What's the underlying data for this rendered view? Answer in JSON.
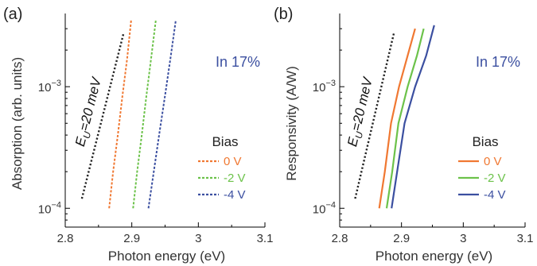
{
  "chart_data": [
    {
      "panel_label": "(a)",
      "type": "line",
      "xlabel": "Photon energy (eV)",
      "ylabel": "Absorption (arb. units)",
      "xlim": [
        2.8,
        3.1
      ],
      "ylim": [
        7e-05,
        0.004
      ],
      "y_scale": "log",
      "x_ticks": [
        2.8,
        2.9,
        3.0,
        3.1
      ],
      "x_tick_labels": [
        "2.8",
        "2.9",
        "3",
        "3.1"
      ],
      "y_ticks": [
        0.0001,
        0.001
      ],
      "annotation": "In 17%",
      "annotation_color": "#3b4fa0",
      "legend_title": "Bias",
      "legend_position": "right",
      "line_style": "dashed",
      "reference_line": {
        "label": "E_U=20 meV",
        "label_main": "E",
        "label_sub": "U",
        "label_rest": "=20 meV",
        "color": "#222222",
        "x": [
          2.825,
          2.888
        ],
        "y": [
          0.00012,
          0.0028
        ]
      },
      "series": [
        {
          "name": "0 V",
          "color": "#f07832",
          "x": [
            2.866,
            2.872,
            2.879,
            2.886,
            2.893,
            2.899
          ],
          "y": [
            0.0001,
            0.0002,
            0.0004,
            0.00085,
            0.0017,
            0.0035
          ]
        },
        {
          "name": "-2 V",
          "color": "#6cc24a",
          "x": [
            2.902,
            2.908,
            2.915,
            2.922,
            2.929,
            2.936
          ],
          "y": [
            0.0001,
            0.0002,
            0.0004,
            0.00085,
            0.0017,
            0.0035
          ]
        },
        {
          "name": "-4 V",
          "color": "#3b4fa0",
          "x": [
            2.925,
            2.933,
            2.941,
            2.95,
            2.958,
            2.966
          ],
          "y": [
            0.0001,
            0.0002,
            0.0004,
            0.00085,
            0.0017,
            0.0035
          ]
        }
      ]
    },
    {
      "panel_label": "(b)",
      "type": "line",
      "xlabel": "Photon energy (eV)",
      "ylabel": "Responsivity (A/W)",
      "xlim": [
        2.8,
        3.1
      ],
      "ylim": [
        7e-05,
        0.004
      ],
      "y_scale": "log",
      "x_ticks": [
        2.8,
        2.9,
        3.0,
        3.1
      ],
      "x_tick_labels": [
        "2.8",
        "2.9",
        "3",
        "3.1"
      ],
      "y_ticks": [
        0.0001,
        0.001
      ],
      "annotation": "In 17%",
      "annotation_color": "#3b4fa0",
      "legend_title": "Bias",
      "legend_position": "right",
      "line_style": "solid",
      "reference_line": {
        "label": "E_U=20 meV",
        "label_main": "E",
        "label_sub": "U",
        "label_rest": "=20 meV",
        "color": "#222222",
        "x": [
          2.825,
          2.888
        ],
        "y": [
          0.00012,
          0.0028
        ]
      },
      "series": [
        {
          "name": "0 V",
          "color": "#f07832",
          "x": [
            2.864,
            2.873,
            2.883,
            2.896,
            2.91,
            2.922
          ],
          "y": [
            0.0001,
            0.0002,
            0.0005,
            0.001,
            0.0018,
            0.003
          ]
        },
        {
          "name": "-2 V",
          "color": "#6cc24a",
          "x": [
            2.876,
            2.885,
            2.895,
            2.91,
            2.925,
            2.936
          ],
          "y": [
            0.0001,
            0.0002,
            0.0005,
            0.001,
            0.0018,
            0.003
          ]
        },
        {
          "name": "-4 V",
          "color": "#3b4fa0",
          "x": [
            2.884,
            2.893,
            2.905,
            2.922,
            2.94,
            2.953
          ],
          "y": [
            0.0001,
            0.0002,
            0.0005,
            0.001,
            0.0018,
            0.0032
          ]
        }
      ]
    }
  ]
}
